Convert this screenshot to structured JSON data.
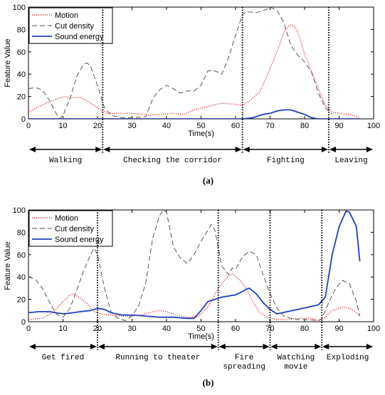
{
  "chart_data": [
    {
      "type": "line",
      "xlabel": "Time(s)",
      "ylabel": "Feature Value",
      "xlim": [
        0,
        100
      ],
      "ylim": [
        0,
        100
      ],
      "x_ticks": [
        0,
        10,
        20,
        30,
        40,
        50,
        60,
        70,
        80,
        90,
        100
      ],
      "y_ticks": [
        0,
        20,
        40,
        60,
        80,
        100
      ],
      "legend_position": "top-left",
      "grid": false,
      "series": [
        {
          "name": "Motion",
          "color": "#e8333a",
          "dash": "dotted",
          "points": [
            [
              0,
              6
            ],
            [
              3,
              11
            ],
            [
              6,
              15
            ],
            [
              9,
              19
            ],
            [
              11,
              20
            ],
            [
              12,
              18
            ],
            [
              13,
              19
            ],
            [
              15,
              19
            ],
            [
              17,
              16
            ],
            [
              19,
              12
            ],
            [
              21,
              8
            ],
            [
              23,
              5
            ],
            [
              27,
              5
            ],
            [
              30,
              5
            ],
            [
              33,
              4
            ],
            [
              35,
              3
            ],
            [
              38,
              4
            ],
            [
              42,
              5
            ],
            [
              45,
              4
            ],
            [
              48,
              8
            ],
            [
              52,
              11
            ],
            [
              56,
              14
            ],
            [
              60,
              13
            ],
            [
              62,
              12
            ],
            [
              64,
              16
            ],
            [
              67,
              24
            ],
            [
              70,
              45
            ],
            [
              72,
              60
            ],
            [
              74,
              77
            ],
            [
              75,
              82
            ],
            [
              76,
              84
            ],
            [
              77,
              83
            ],
            [
              78,
              78
            ],
            [
              80,
              58
            ],
            [
              83,
              35
            ],
            [
              86,
              12
            ],
            [
              88,
              6
            ],
            [
              91,
              5
            ],
            [
              93,
              4
            ],
            [
              95,
              2
            ],
            [
              96,
              1
            ]
          ]
        },
        {
          "name": "Cut density",
          "color": "#555555",
          "dash": "dashed",
          "points": [
            [
              0,
              27
            ],
            [
              2,
              28
            ],
            [
              4,
              26
            ],
            [
              6,
              17
            ],
            [
              8,
              5
            ],
            [
              9,
              0
            ],
            [
              10,
              3
            ],
            [
              12,
              18
            ],
            [
              14,
              38
            ],
            [
              16,
              49
            ],
            [
              17,
              50
            ],
            [
              18,
              47
            ],
            [
              20,
              30
            ],
            [
              22,
              10
            ],
            [
              24,
              3
            ],
            [
              27,
              1
            ],
            [
              30,
              1
            ],
            [
              34,
              2
            ],
            [
              36,
              18
            ],
            [
              38,
              26
            ],
            [
              40,
              30
            ],
            [
              42,
              27
            ],
            [
              44,
              23
            ],
            [
              46,
              25
            ],
            [
              48,
              25
            ],
            [
              50,
              30
            ],
            [
              52,
              43
            ],
            [
              54,
              43
            ],
            [
              56,
              40
            ],
            [
              58,
              55
            ],
            [
              60,
              75
            ],
            [
              62,
              93
            ],
            [
              63,
              96
            ],
            [
              66,
              95
            ],
            [
              69,
              98
            ],
            [
              70,
              100
            ],
            [
              72,
              97
            ],
            [
              74,
              86
            ],
            [
              76,
              66
            ],
            [
              78,
              57
            ],
            [
              80,
              51
            ],
            [
              82,
              42
            ],
            [
              84,
              23
            ],
            [
              86,
              10
            ],
            [
              88,
              4
            ]
          ]
        },
        {
          "name": "Sound energy",
          "color": "#1f3fbf",
          "dash": "solid",
          "points": [
            [
              0,
              0
            ],
            [
              10,
              0
            ],
            [
              20,
              0
            ],
            [
              30,
              0
            ],
            [
              40,
              0
            ],
            [
              50,
              0
            ],
            [
              60,
              0
            ],
            [
              62,
              0
            ],
            [
              65,
              1
            ],
            [
              68,
              4
            ],
            [
              70,
              5
            ],
            [
              72,
              7
            ],
            [
              74,
              8
            ],
            [
              76,
              8
            ],
            [
              78,
              6
            ],
            [
              80,
              4
            ],
            [
              82,
              1
            ],
            [
              84,
              0
            ],
            [
              90,
              0
            ],
            [
              96,
              0
            ]
          ]
        }
      ],
      "segments": {
        "dividers_x": [
          21.5,
          62,
          87
        ],
        "labels": [
          {
            "text": "Walking",
            "from": 0,
            "to": 21.5
          },
          {
            "text": "Checking the corridor",
            "from": 21.5,
            "to": 62
          },
          {
            "text": "Fighting",
            "from": 62,
            "to": 87
          },
          {
            "text": "Leaving",
            "from": 87,
            "to": 100
          }
        ]
      },
      "caption": "(a)"
    },
    {
      "type": "line",
      "xlabel": "Time(s)",
      "ylabel": "Feature Value",
      "xlim": [
        0,
        100
      ],
      "ylim": [
        0,
        100
      ],
      "x_ticks": [
        0,
        10,
        20,
        30,
        40,
        50,
        60,
        70,
        80,
        90,
        100
      ],
      "y_ticks": [
        0,
        20,
        40,
        60,
        80,
        100
      ],
      "legend_position": "top-left",
      "grid": false,
      "series": [
        {
          "name": "Motion",
          "color": "#e8333a",
          "dash": "dotted",
          "points": [
            [
              0,
              2
            ],
            [
              4,
              3
            ],
            [
              7,
              8
            ],
            [
              10,
              18
            ],
            [
              12,
              24
            ],
            [
              13,
              25
            ],
            [
              15,
              21
            ],
            [
              17,
              16
            ],
            [
              19,
              9
            ],
            [
              21,
              7
            ],
            [
              24,
              6
            ],
            [
              27,
              5
            ],
            [
              30,
              5
            ],
            [
              33,
              6
            ],
            [
              36,
              9
            ],
            [
              38,
              10
            ],
            [
              40,
              9
            ],
            [
              43,
              6
            ],
            [
              46,
              4
            ],
            [
              49,
              4
            ],
            [
              52,
              13
            ],
            [
              55,
              30
            ],
            [
              57,
              38
            ],
            [
              59,
              43
            ],
            [
              61,
              38
            ],
            [
              63,
              30
            ],
            [
              65,
              18
            ],
            [
              67,
              8
            ],
            [
              69,
              4
            ],
            [
              72,
              2
            ],
            [
              75,
              2
            ],
            [
              78,
              3
            ],
            [
              82,
              3
            ],
            [
              84,
              1
            ],
            [
              86,
              4
            ],
            [
              88,
              10
            ],
            [
              91,
              13
            ],
            [
              93,
              12
            ],
            [
              95,
              8
            ],
            [
              96,
              5
            ]
          ]
        },
        {
          "name": "Cut density",
          "color": "#555555",
          "dash": "dashed",
          "points": [
            [
              0,
              40
            ],
            [
              2,
              38
            ],
            [
              4,
              30
            ],
            [
              6,
              18
            ],
            [
              8,
              7
            ],
            [
              10,
              4
            ],
            [
              12,
              12
            ],
            [
              14,
              28
            ],
            [
              16,
              46
            ],
            [
              18,
              60
            ],
            [
              19,
              66
            ],
            [
              20,
              60
            ],
            [
              22,
              30
            ],
            [
              24,
              8
            ],
            [
              26,
              3
            ],
            [
              28,
              1
            ],
            [
              30,
              5
            ],
            [
              32,
              15
            ],
            [
              34,
              35
            ],
            [
              36,
              75
            ],
            [
              38,
              95
            ],
            [
              39,
              100
            ],
            [
              40,
              98
            ],
            [
              42,
              67
            ],
            [
              44,
              57
            ],
            [
              46,
              52
            ],
            [
              48,
              60
            ],
            [
              50,
              72
            ],
            [
              52,
              82
            ],
            [
              53,
              87
            ],
            [
              54,
              82
            ],
            [
              56,
              50
            ],
            [
              58,
              42
            ],
            [
              59,
              48
            ],
            [
              60,
              47
            ],
            [
              62,
              58
            ],
            [
              64,
              63
            ],
            [
              66,
              60
            ],
            [
              68,
              42
            ],
            [
              70,
              25
            ],
            [
              72,
              12
            ],
            [
              74,
              5
            ],
            [
              77,
              2
            ],
            [
              80,
              2
            ],
            [
              84,
              1
            ],
            [
              85,
              3
            ],
            [
              87,
              17
            ],
            [
              89,
              30
            ],
            [
              91,
              37
            ],
            [
              93,
              34
            ],
            [
              95,
              18
            ],
            [
              96,
              5
            ]
          ]
        },
        {
          "name": "Sound energy",
          "color": "#1f3fbf",
          "dash": "solid",
          "points": [
            [
              0,
              8
            ],
            [
              3,
              9
            ],
            [
              6,
              9
            ],
            [
              8,
              8
            ],
            [
              10,
              7
            ],
            [
              13,
              8
            ],
            [
              15,
              9
            ],
            [
              18,
              10
            ],
            [
              20,
              12
            ],
            [
              22,
              11
            ],
            [
              24,
              8
            ],
            [
              27,
              6
            ],
            [
              30,
              6
            ],
            [
              34,
              5
            ],
            [
              38,
              4
            ],
            [
              42,
              4
            ],
            [
              46,
              3
            ],
            [
              48,
              3
            ],
            [
              50,
              10
            ],
            [
              52,
              18
            ],
            [
              54,
              20
            ],
            [
              56,
              22
            ],
            [
              58,
              23
            ],
            [
              60,
              24
            ],
            [
              62,
              27
            ],
            [
              63,
              29
            ],
            [
              64,
              30
            ],
            [
              66,
              25
            ],
            [
              68,
              17
            ],
            [
              70,
              11
            ],
            [
              72,
              7
            ],
            [
              75,
              9
            ],
            [
              78,
              11
            ],
            [
              81,
              13
            ],
            [
              84,
              15
            ],
            [
              86,
              22
            ],
            [
              88,
              60
            ],
            [
              90,
              85
            ],
            [
              92,
              99
            ],
            [
              93,
              98
            ],
            [
              95,
              85
            ],
            [
              96,
              54
            ]
          ]
        }
      ],
      "segments": {
        "dividers_x": [
          20,
          55,
          70,
          85
        ],
        "labels": [
          {
            "text": "Get fired",
            "from": 0,
            "to": 20
          },
          {
            "text": "Running to theater",
            "from": 20,
            "to": 55
          },
          {
            "text": "Fire\nspreading",
            "from": 55,
            "to": 70
          },
          {
            "text": "Watching\nmovie",
            "from": 70,
            "to": 85
          },
          {
            "text": "Exploding",
            "from": 85,
            "to": 100
          }
        ]
      },
      "caption": "(b)"
    }
  ]
}
